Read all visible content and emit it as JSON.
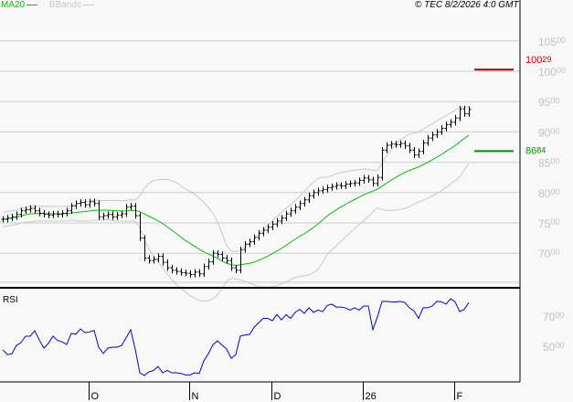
{
  "header": {
    "legend": [
      {
        "label": "MA20",
        "color": "#00c000"
      },
      {
        "label": "BBands",
        "color": "#c8c8c8"
      }
    ],
    "copyright": "© TEC 8/2/2026 4:0 GMT"
  },
  "chart_data": [
    {
      "type": "ohlc",
      "panel": "price",
      "ylim": [
        6500,
        10800
      ],
      "y_ticks": [
        7000,
        7500,
        8000,
        8500,
        9000,
        9500,
        10000,
        10500
      ],
      "y_tick_labels": [
        [
          "70",
          "00"
        ],
        [
          "75",
          "00"
        ],
        [
          "80",
          "00"
        ],
        [
          "85",
          "00"
        ],
        [
          "90",
          "00"
        ],
        [
          "95",
          "00"
        ],
        [
          "100",
          "00"
        ],
        [
          "105",
          "00"
        ]
      ],
      "grid": true,
      "indicators": [
        "MA20",
        "BBands"
      ],
      "closes": [
        7560,
        7580,
        7600,
        7640,
        7700,
        7720,
        7740,
        7700,
        7660,
        7640,
        7630,
        7650,
        7640,
        7660,
        7700,
        7780,
        7820,
        7840,
        7800,
        7850,
        7820,
        7600,
        7620,
        7640,
        7600,
        7630,
        7650,
        7760,
        7780,
        7620,
        7250,
        6920,
        6880,
        6900,
        6950,
        6850,
        6760,
        6720,
        6700,
        6680,
        6670,
        6650,
        6690,
        6660,
        6780,
        6860,
        7000,
        6980,
        6920,
        6880,
        6760,
        6720,
        7060,
        7150,
        7190,
        7260,
        7330,
        7380,
        7430,
        7480,
        7530,
        7580,
        7650,
        7700,
        7760,
        7820,
        7880,
        7950,
        8000,
        8030,
        8050,
        8080,
        8100,
        8120,
        8110,
        8140,
        8150,
        8160,
        8200,
        8240,
        8210,
        8150,
        8250,
        8700,
        8780,
        8800,
        8790,
        8810,
        8770,
        8700,
        8620,
        8680,
        8820,
        8900,
        8950,
        9000,
        9060,
        9120,
        9160,
        9230,
        9380,
        9300,
        9370
      ],
      "reference_lines": [
        {
          "value": 10029,
          "label_main": "100",
          "label_frac": "29",
          "color": "#d00000"
        },
        {
          "value": 8684,
          "label_main": "86",
          "label_frac": "84",
          "color": "#009000"
        }
      ]
    },
    {
      "type": "line",
      "panel": "rsi",
      "title": "RSI",
      "ylim": [
        25,
        88
      ],
      "y_ticks": [
        50,
        70
      ],
      "y_tick_labels": [
        [
          "50",
          "00"
        ],
        [
          "70",
          "00"
        ]
      ],
      "color": "#0000d0",
      "values": [
        47.6,
        44.5,
        45,
        50.6,
        52.4,
        56.7,
        56.7,
        60.3,
        54.2,
        48.8,
        52,
        56.7,
        53.8,
        53,
        51.2,
        58.5,
        58,
        61.5,
        59,
        59.5,
        60.5,
        49.4,
        45.2,
        48.8,
        49.4,
        49.4,
        50.5,
        55.5,
        61,
        48,
        32.4,
        30.6,
        33,
        34,
        36.6,
        32.4,
        34,
        32.4,
        32.4,
        32,
        31,
        31,
        32.4,
        32,
        40.3,
        45,
        51,
        53.6,
        50.6,
        48.2,
        42,
        44.5,
        56.7,
        57.5,
        57.8,
        62.6,
        65.6,
        68.5,
        68.5,
        67,
        71,
        67.5,
        71,
        68.5,
        72.5,
        74.5,
        71.8,
        75.5,
        72.5,
        74,
        73,
        77,
        78,
        76,
        76,
        75.5,
        74,
        75.5,
        74,
        76.7,
        76.7,
        61,
        69.5,
        79.8,
        79.8,
        79.5,
        79.4,
        79.8,
        79,
        75.5,
        73.5,
        68.5,
        75.5,
        75.5,
        76.7,
        79.8,
        79.5,
        78,
        81.5,
        79.5,
        73,
        74.5,
        79
      ]
    }
  ],
  "x_axis": {
    "labels": [
      "O",
      "N",
      "D",
      "26",
      "F"
    ],
    "bar_index": [
      19,
      41,
      59,
      79,
      99
    ]
  }
}
